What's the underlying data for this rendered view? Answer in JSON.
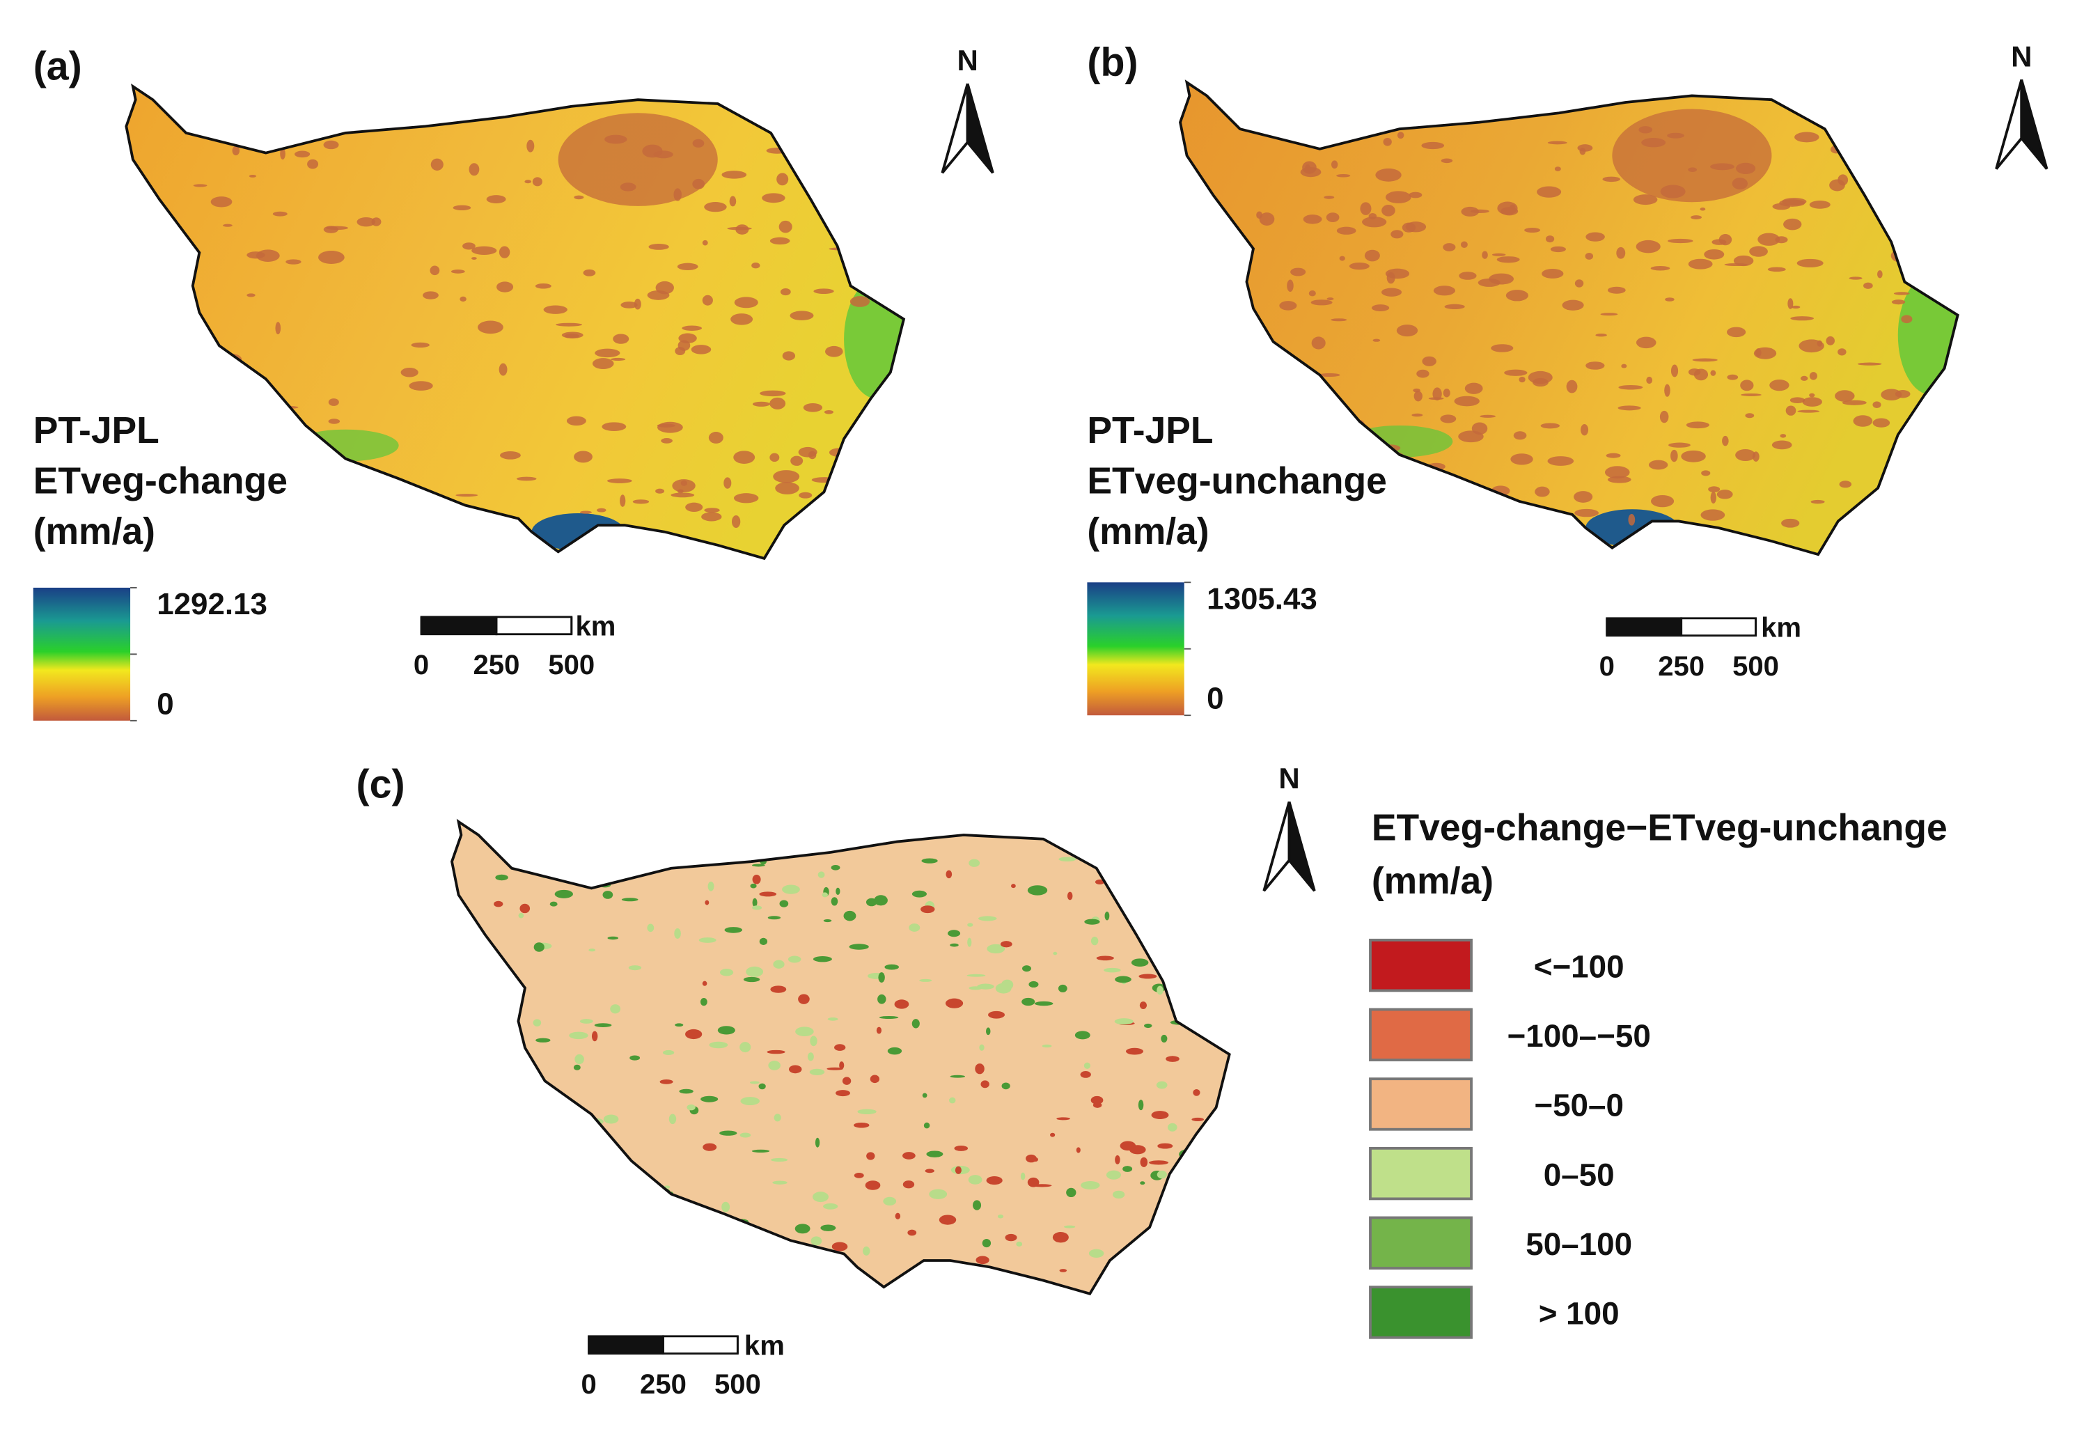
{
  "panels": [
    {
      "label": "(a)",
      "legend_title": [
        "PT-JPL",
        "ETveg-change",
        "(mm/a)"
      ],
      "colorbar_max": 1292.13,
      "colorbar_min": 0,
      "scale_unit": "km",
      "scale_ticks": [
        0,
        250,
        500
      ],
      "north": "N"
    },
    {
      "label": "(b)",
      "legend_title": [
        "PT-JPL",
        "ETveg-unchange",
        "(mm/a)"
      ],
      "colorbar_max": 1305.43,
      "colorbar_min": 0,
      "scale_unit": "km",
      "scale_ticks": [
        0,
        250,
        500
      ],
      "north": "N"
    },
    {
      "label": "(c)",
      "legend_title": [
        "ETveg-change−ETveg-unchange",
        "(mm/a)"
      ],
      "scale_unit": "km",
      "scale_ticks": [
        0,
        250,
        500
      ],
      "north": "N",
      "classes": [
        {
          "label": "<−100",
          "color": "#c21a1e"
        },
        {
          "label": "−100–−50",
          "color": "#e06a45"
        },
        {
          "label": "−50–0",
          "color": "#f2b482"
        },
        {
          "label": "0–50",
          "color": "#bfe08a"
        },
        {
          "label": "50–100",
          "color": "#74b44a"
        },
        {
          "label": "> 100",
          "color": "#3a922e"
        }
      ]
    }
  ]
}
